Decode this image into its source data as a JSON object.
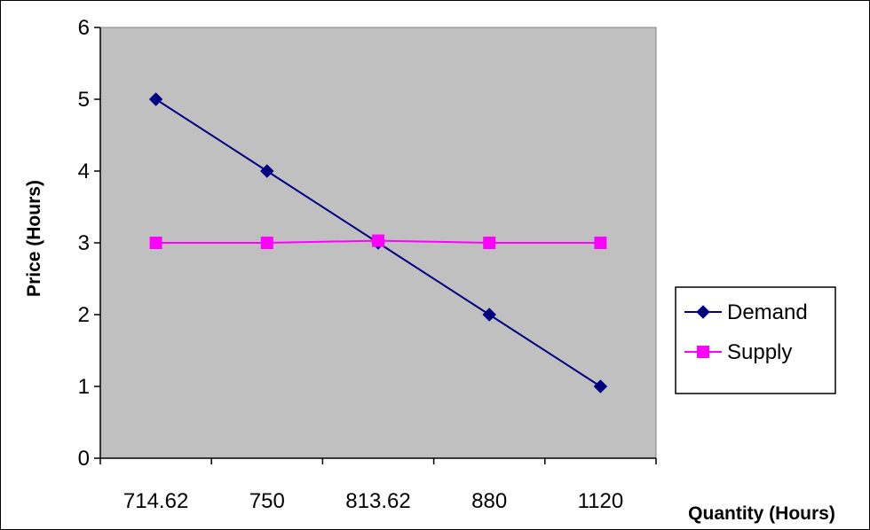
{
  "chart_data": {
    "type": "line",
    "title": "",
    "xlabel": "Quantity (Hours)",
    "ylabel": "Price (Hours)",
    "categories": [
      "714.62",
      "750",
      "813.62",
      "880",
      "1120"
    ],
    "ylim": [
      0,
      6
    ],
    "yticks": [
      "0",
      "1",
      "2",
      "3",
      "4",
      "5",
      "6"
    ],
    "grid": false,
    "legend_position": "right",
    "plot_background": "#c0c0c0",
    "series": [
      {
        "name": "Demand",
        "values": [
          5,
          4,
          3,
          2,
          1
        ],
        "color": "#000080",
        "marker": "diamond"
      },
      {
        "name": "Supply",
        "values": [
          3,
          3,
          3.03,
          3,
          3
        ],
        "color": "#ff00ff",
        "marker": "square"
      }
    ]
  }
}
